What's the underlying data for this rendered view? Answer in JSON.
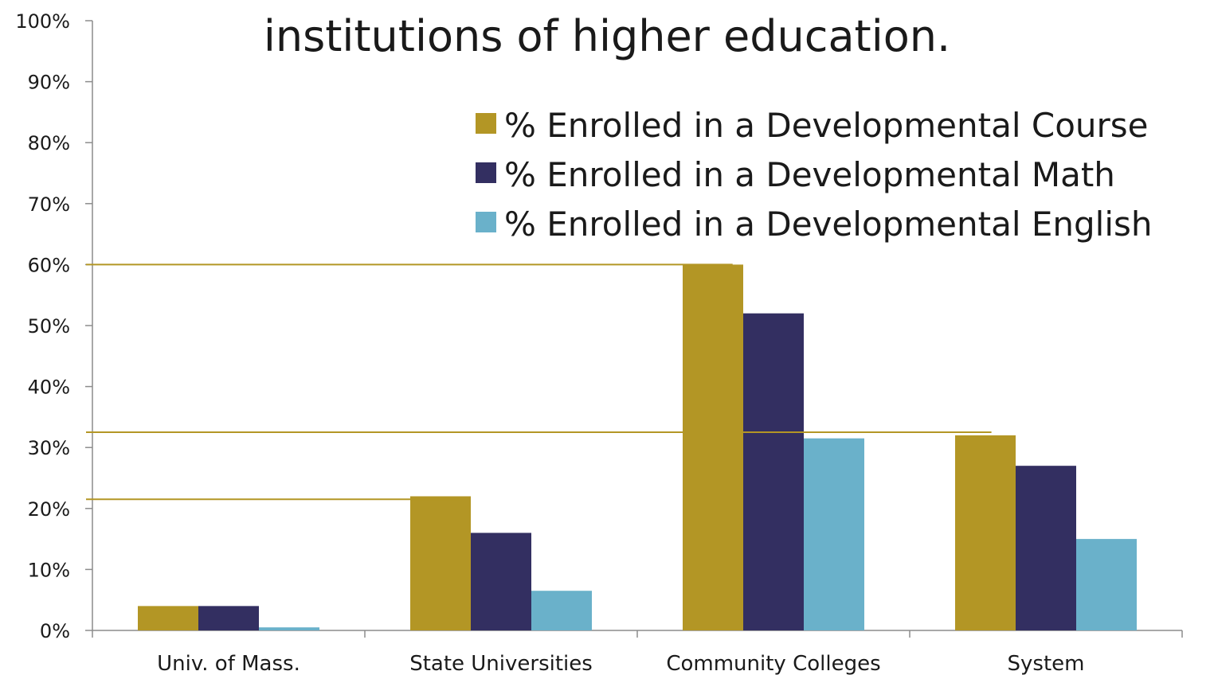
{
  "chart_data": {
    "type": "bar",
    "title_lines": [
      "",
      "institutions of higher education."
    ],
    "categories": [
      "Univ. of Mass.",
      "State Universities",
      "Community Colleges",
      "System"
    ],
    "series": [
      {
        "name": "% Enrolled in a Developmental Course",
        "color": "#b39625",
        "values": [
          4,
          22,
          60,
          32
        ]
      },
      {
        "name": "% Enrolled in a Developmental Math",
        "color": "#332f61",
        "values": [
          4,
          16,
          52,
          27
        ]
      },
      {
        "name": "% Enrolled in a Developmental English",
        "color": "#6ab1ca",
        "values": [
          0.5,
          6.5,
          31.5,
          15
        ]
      }
    ],
    "ylim": [
      0,
      100
    ],
    "yticks": [
      "0%",
      "10%",
      "20%",
      "30%",
      "40%",
      "50%",
      "60%",
      "70%",
      "80%",
      "90%",
      "100%"
    ],
    "legend_position": "top-right",
    "reference_lines": [
      {
        "color": "#b39625",
        "y": 60
      },
      {
        "color": "#b39625",
        "y": 32.5
      },
      {
        "color": "#b39625",
        "y": 21.5
      }
    ]
  }
}
